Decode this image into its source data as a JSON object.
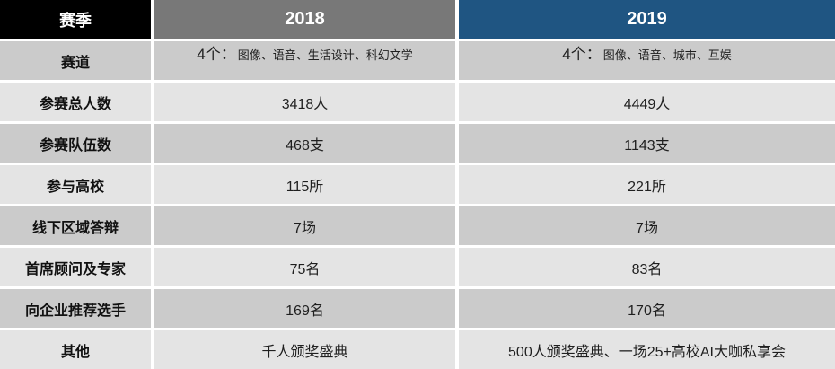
{
  "colors": {
    "corner_bg": "#000000",
    "header_2018_bg": "#787878",
    "header_2019_bg": "#1F5582",
    "row_dark_bg": "#CBCBCB",
    "row_light_bg": "#E4E4E4",
    "header_text": "#FFFFFF",
    "body_text": "#1F1F1F"
  },
  "table": {
    "header": {
      "season": "赛季",
      "y2018": "2018",
      "y2019": "2019"
    },
    "rows": [
      {
        "label": "赛道",
        "v2018_prefix": "4个：",
        "v2018_detail": "图像、语音、生活设计、科幻文学",
        "v2019_prefix": "4个：",
        "v2019_detail": "图像、语音、城市、互娱"
      },
      {
        "label": "参赛总人数",
        "v2018": "3418人",
        "v2019": "4449人"
      },
      {
        "label": "参赛队伍数",
        "v2018": "468支",
        "v2019": "1143支"
      },
      {
        "label": "参与高校",
        "v2018": "115所",
        "v2019": "221所"
      },
      {
        "label": "线下区域答辩",
        "v2018": "7场",
        "v2019": "7场"
      },
      {
        "label": "首席顾问及专家",
        "v2018": "75名",
        "v2019": "83名"
      },
      {
        "label": "向企业推荐选手",
        "v2018": "169名",
        "v2019": "170名"
      },
      {
        "label": "其他",
        "v2018": "千人颁奖盛典",
        "v2019": "500人颁奖盛典、一场25+高校AI大咖私享会"
      }
    ]
  },
  "chart_data": {
    "type": "table",
    "columns": [
      "赛季",
      "2018",
      "2019"
    ],
    "rows": [
      [
        "赛道",
        "4个：图像、语音、生活设计、科幻文学",
        "4个：图像、语音、城市、互娱"
      ],
      [
        "参赛总人数",
        "3418人",
        "4449人"
      ],
      [
        "参赛队伍数",
        "468支",
        "1143支"
      ],
      [
        "参与高校",
        "115所",
        "221所"
      ],
      [
        "线下区域答辩",
        "7场",
        "7场"
      ],
      [
        "首席顾问及专家",
        "75名",
        "83名"
      ],
      [
        "向企业推荐选手",
        "169名",
        "170名"
      ],
      [
        "其他",
        "千人颁奖盛典",
        "500人颁奖盛典、一场25+高校AI大咖私享会"
      ]
    ]
  }
}
